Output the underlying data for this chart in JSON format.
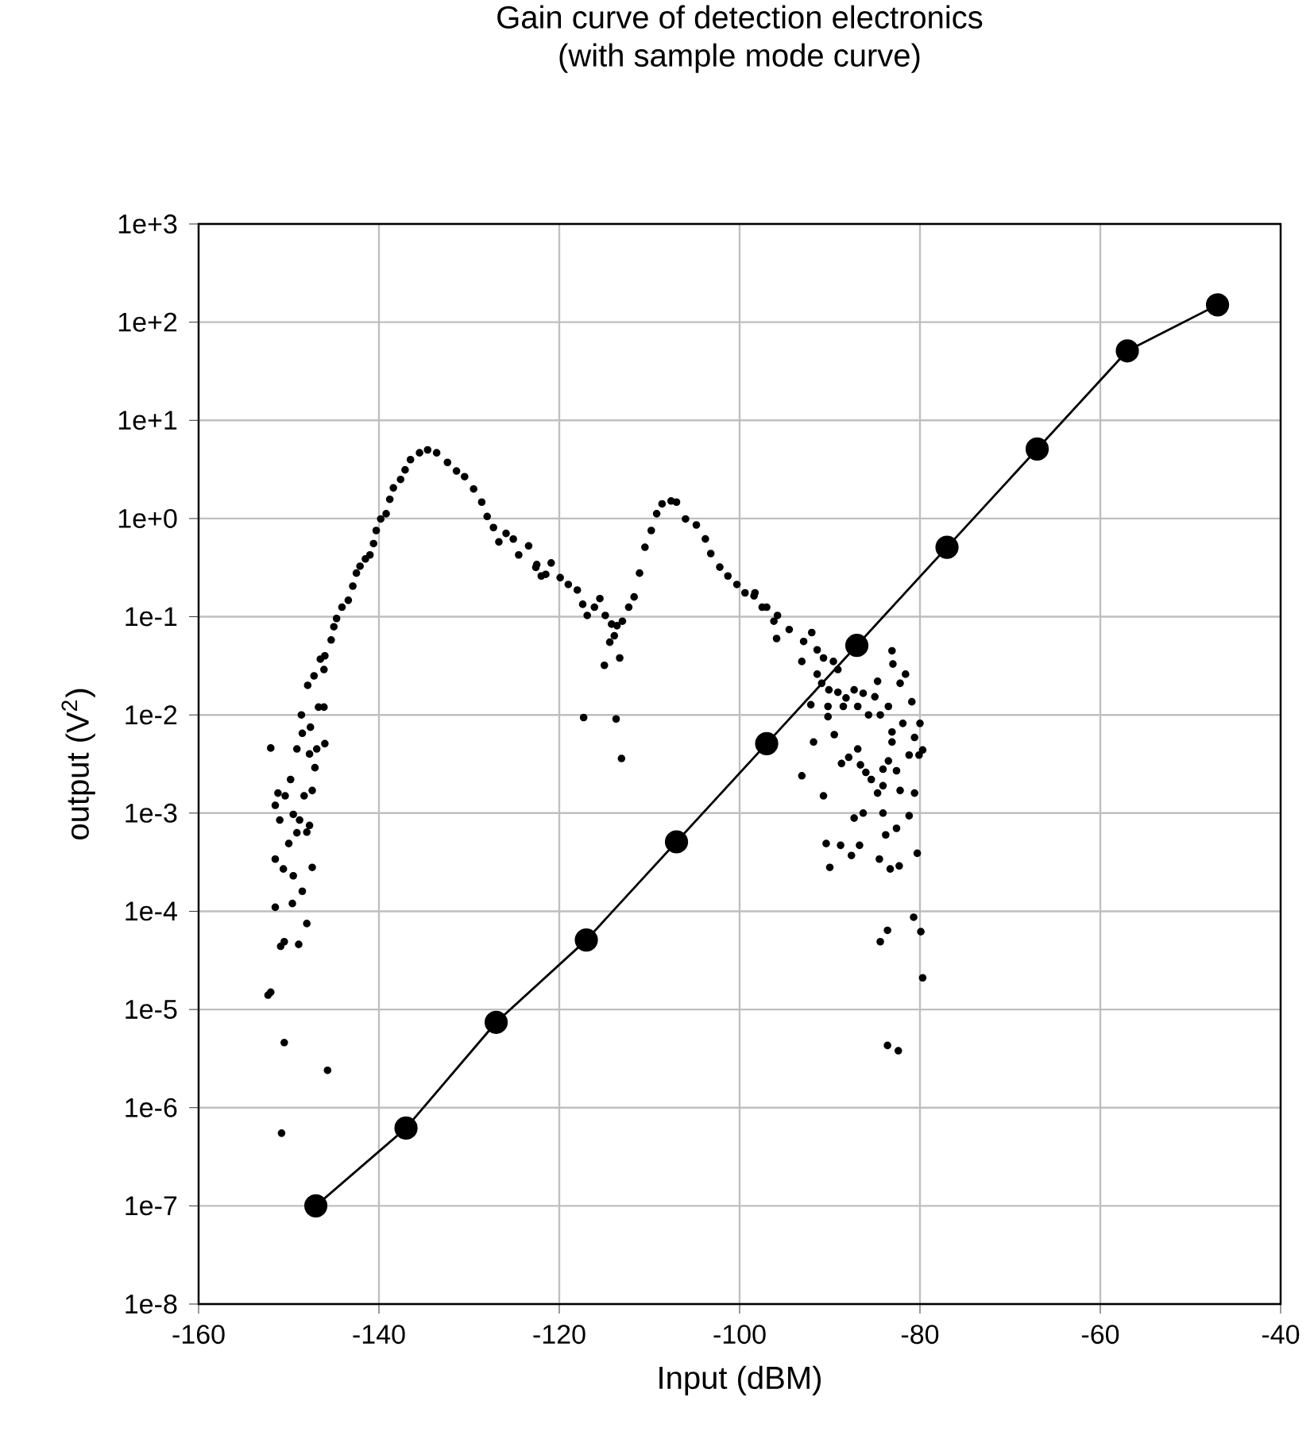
{
  "chart_data": {
    "type": "line",
    "title": "Gain curve of detection electronics",
    "subtitle": "(with sample mode curve)",
    "xlabel": "Input (dBM)",
    "ylabel": "output (V$^{2}$)",
    "log": "y",
    "grid": true,
    "xlim": [
      -160,
      -40
    ],
    "xticks": [
      -160,
      -140,
      -120,
      -100,
      -80,
      -60,
      -40
    ],
    "ylim": [
      1e-08,
      1000
    ],
    "yticks": [
      {
        "value": 1e-08,
        "label": "1e-8"
      },
      {
        "value": 1e-07,
        "label": "1e-7"
      },
      {
        "value": 1e-06,
        "label": "1e-6"
      },
      {
        "value": 1e-05,
        "label": "1e-5"
      },
      {
        "value": 0.0001,
        "label": "1e-4"
      },
      {
        "value": 0.001,
        "label": "1e-3"
      },
      {
        "value": 0.01,
        "label": "1e-2"
      },
      {
        "value": 0.1,
        "label": "1e-1"
      },
      {
        "value": 1,
        "label": "1e+0"
      },
      {
        "value": 10,
        "label": "1e+1"
      },
      {
        "value": 100,
        "label": "1e+2"
      },
      {
        "value": 1000,
        "label": "1e+3"
      }
    ],
    "series": [
      {
        "type": "scatter",
        "marker": "circle",
        "color": "#000000",
        "x": [
          -152.0,
          -149.1,
          -152.3,
          -152.0,
          -150.8,
          -150.5,
          -145.7,
          -151.5,
          -150.6,
          -151.5,
          -150.9,
          -150.5,
          -148.9,
          -148.0,
          -149.6,
          -148.5,
          -149.5,
          -147.4,
          -150.0,
          -149.1,
          -148.0,
          -147.7,
          -148.8,
          -151.0,
          -151.5,
          -151.2,
          -150.4,
          -149.5,
          -148.3,
          -147.4,
          -149.8,
          -147.1,
          -147.7,
          -146.9,
          -146.0,
          -148.5,
          -147.6,
          -148.6,
          -146.7,
          -146.1,
          -147.9,
          -147.2,
          -146.1,
          -146.5,
          -146.0,
          -145.3,
          -145.0,
          -144.7,
          -144.1,
          -143.4,
          -142.9,
          -142.5,
          -142.1,
          -141.5,
          -141.0,
          -140.6,
          -140.3,
          -139.8,
          -139.2,
          -138.8,
          -138.4,
          -137.6,
          -137.1,
          -136.5,
          -135.5,
          -134.6,
          -133.6,
          -132.4,
          -131.4,
          -130.5,
          -129.5,
          -128.6,
          -128.0,
          -127.3,
          -126.7,
          -125.9,
          -125.1,
          -124.5,
          -123.4,
          -122.6,
          -122.0,
          -122.5,
          -121.5,
          -120.9,
          -119.9,
          -119.0,
          -118.0,
          -117.4,
          -116.9,
          -116.1,
          -115.5,
          -114.9,
          -114.2,
          -113.9,
          -114.4,
          -115.0,
          -113.3,
          -113.6,
          -113.0,
          -112.3,
          -111.7,
          -111.1,
          -110.5,
          -109.8,
          -109.2,
          -108.6,
          -107.6,
          -107.0,
          -106.0,
          -104.8,
          -103.8,
          -103.2,
          -102.2,
          -101.3,
          -100.3,
          -99.4,
          -98.4,
          -97.5,
          -96.2,
          -95.9,
          -117.3,
          -113.7,
          -113.1,
          -98.3,
          -97.0,
          -95.8,
          -94.5,
          -92.9,
          -92.0,
          -91.4,
          -93.1,
          -90.7,
          -89.6,
          -91.4,
          -89.1,
          -90.9,
          -90.1,
          -89.1,
          -88.2,
          -87.3,
          -86.3,
          -85.0,
          -92.1,
          -90.2,
          -88.5,
          -86.9,
          -85.7,
          -84.4,
          -90.2,
          -83.5,
          -84.7,
          -83.1,
          -83.0,
          -81.6,
          -82.2,
          -80.9,
          -80.0,
          -81.9,
          -80.6,
          -83.1,
          -83.1,
          -79.7,
          -80.1,
          -81.2,
          -82.6,
          -84.1,
          -83.5,
          -85.4,
          -86.0,
          -86.6,
          -87.9,
          -88.7,
          -89.5,
          -91.8,
          -93.1,
          -86.9,
          -90.7,
          -84.7,
          -82.2,
          -80.6,
          -84.1,
          -86.3,
          -87.3,
          -84.1,
          -81.2,
          -82.6,
          -83.8,
          -90.4,
          -88.8,
          -86.7,
          -87.6,
          -90.0,
          -84.5,
          -83.3,
          -82.3,
          -80.3,
          -80.7,
          -83.6,
          -84.4,
          -79.9,
          -79.7,
          -83.6,
          -82.4
        ],
        "values": [
          0.0046,
          0.0045,
          1.4e-05,
          1.5e-05,
          5.5e-07,
          4.6e-06,
          2.4e-06,
          0.00034,
          0.00027,
          0.00011,
          4.4e-05,
          4.9e-05,
          4.6e-05,
          7.5e-05,
          0.00012,
          0.00016,
          0.00023,
          0.00028,
          0.00049,
          0.00063,
          0.00064,
          0.00075,
          0.00085,
          0.00085,
          0.0012,
          0.0016,
          0.0015,
          0.00097,
          0.0015,
          0.0017,
          0.0022,
          0.0029,
          0.004,
          0.0045,
          0.0051,
          0.0065,
          0.0075,
          0.01,
          0.012,
          0.012,
          0.02,
          0.025,
          0.029,
          0.037,
          0.04,
          0.058,
          0.079,
          0.096,
          0.125,
          0.147,
          0.205,
          0.278,
          0.327,
          0.388,
          0.426,
          0.556,
          0.755,
          0.99,
          1.12,
          1.57,
          2.05,
          2.5,
          3.13,
          3.98,
          4.67,
          5.0,
          4.67,
          3.73,
          3.05,
          2.67,
          2.0,
          1.47,
          1.05,
          0.81,
          0.578,
          0.706,
          0.618,
          0.426,
          0.527,
          0.318,
          0.26,
          0.34,
          0.27,
          0.353,
          0.25,
          0.213,
          0.187,
          0.134,
          0.103,
          0.125,
          0.153,
          0.103,
          0.084,
          0.064,
          0.055,
          0.032,
          0.038,
          0.081,
          0.09,
          0.125,
          0.159,
          0.278,
          0.51,
          0.755,
          1.12,
          1.41,
          1.51,
          1.47,
          0.99,
          0.86,
          0.62,
          0.44,
          0.32,
          0.26,
          0.213,
          0.175,
          0.163,
          0.125,
          0.09,
          0.06,
          0.0094,
          0.0091,
          0.0036,
          0.175,
          0.125,
          0.103,
          0.074,
          0.056,
          0.069,
          0.046,
          0.035,
          0.038,
          0.035,
          0.026,
          0.029,
          0.021,
          0.018,
          0.017,
          0.0149,
          0.018,
          0.0166,
          0.0153,
          0.0127,
          0.0122,
          0.0122,
          0.0122,
          0.01,
          0.01,
          0.0096,
          0.0122,
          0.022,
          0.045,
          0.033,
          0.026,
          0.021,
          0.0136,
          0.0082,
          0.0082,
          0.0059,
          0.0067,
          0.0053,
          0.0044,
          0.0039,
          0.0039,
          0.0027,
          0.0028,
          0.0034,
          0.0022,
          0.0026,
          0.0031,
          0.0037,
          0.0032,
          0.0063,
          0.0053,
          0.0024,
          0.0045,
          0.0015,
          0.0016,
          0.0017,
          0.0016,
          0.0019,
          0.001,
          0.00089,
          0.001,
          0.00094,
          0.0007,
          0.0006,
          0.00049,
          0.00047,
          0.00047,
          0.00037,
          0.00028,
          0.00034,
          0.00027,
          0.00029,
          0.00039,
          8.7e-05,
          6.4e-05,
          4.9e-05,
          6.2e-05,
          2.1e-05,
          4.3e-06,
          3.8e-06
        ]
      },
      {
        "marker": "circle",
        "color": "#000000",
        "x": [
          -147,
          -137,
          -127,
          -117,
          -107,
          -97,
          -87,
          -77,
          -67,
          -57,
          -47
        ],
        "values": [
          1e-07,
          6.2e-07,
          7.4e-06,
          5.1e-05,
          0.00051,
          0.0051,
          0.051,
          0.51,
          5.1,
          51,
          150
        ]
      }
    ]
  }
}
